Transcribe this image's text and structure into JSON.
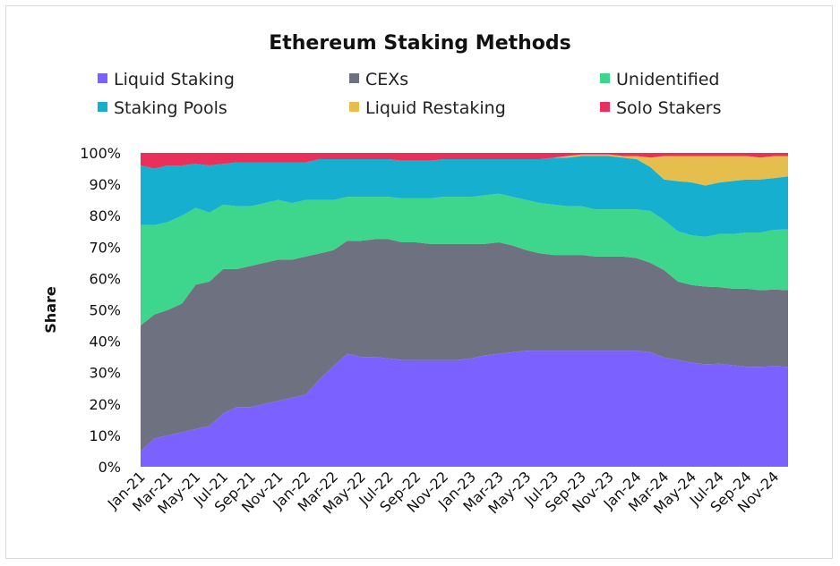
{
  "chart_data": {
    "type": "area",
    "stacked": true,
    "normalized": true,
    "title": "Ethereum Staking Methods",
    "xlabel": "",
    "ylabel": "Share",
    "ylim": [
      0,
      100
    ],
    "y_ticks": [
      "0%",
      "10%",
      "20%",
      "30%",
      "40%",
      "50%",
      "60%",
      "70%",
      "80%",
      "90%",
      "100%"
    ],
    "x_tick_labels": [
      "Jan-21",
      "Mar-21",
      "May-21",
      "Jul-21",
      "Sep-21",
      "Nov-21",
      "Jan-22",
      "Mar-22",
      "May-22",
      "Jul-22",
      "Sep-22",
      "Nov-22",
      "Jan-23",
      "Mar-23",
      "May-23",
      "Jul-23",
      "Sep-23",
      "Nov-23",
      "Jan-24",
      "Mar-24",
      "May-24",
      "Jul-24",
      "Sep-24",
      "Nov-24"
    ],
    "x": [
      "Jan-21",
      "Feb-21",
      "Mar-21",
      "Apr-21",
      "May-21",
      "Jun-21",
      "Jul-21",
      "Aug-21",
      "Sep-21",
      "Oct-21",
      "Nov-21",
      "Dec-21",
      "Jan-22",
      "Feb-22",
      "Mar-22",
      "Apr-22",
      "May-22",
      "Jun-22",
      "Jul-22",
      "Aug-22",
      "Sep-22",
      "Oct-22",
      "Nov-22",
      "Dec-22",
      "Jan-23",
      "Feb-23",
      "Mar-23",
      "Apr-23",
      "May-23",
      "Jun-23",
      "Jul-23",
      "Aug-23",
      "Sep-23",
      "Oct-23",
      "Nov-23",
      "Dec-23",
      "Jan-24",
      "Feb-24",
      "Mar-24",
      "Apr-24",
      "May-24",
      "Jun-24",
      "Jul-24",
      "Aug-24",
      "Sep-24",
      "Oct-24",
      "Nov-24",
      "Dec-24"
    ],
    "legend_position": "top",
    "series": [
      {
        "name": "Liquid Staking",
        "color": "#7B61FF",
        "values": [
          5,
          9,
          10,
          11,
          12,
          13,
          17,
          19,
          19,
          20,
          21,
          22,
          23,
          28,
          32,
          36,
          35,
          35,
          34.5,
          34,
          34,
          34,
          34,
          34,
          34.5,
          35.5,
          36,
          36.5,
          37,
          37,
          37,
          37,
          37,
          37,
          37,
          37,
          37,
          36.5,
          35,
          34,
          33.5,
          33,
          33,
          32.5,
          32,
          32,
          32,
          32
        ]
      },
      {
        "name": "CEXs",
        "color": "#6E7280",
        "values": [
          40,
          39.5,
          40,
          41,
          46,
          46,
          46,
          44,
          45,
          45,
          45,
          44,
          44,
          40,
          37,
          36,
          37,
          37.5,
          38,
          37.5,
          37.5,
          37,
          37,
          37,
          36.5,
          35.5,
          35.5,
          34,
          32,
          31,
          30.5,
          30.5,
          30.5,
          30,
          30,
          30,
          29.5,
          28.5,
          28,
          25,
          25,
          25,
          24.5,
          24.5,
          25,
          24.5,
          24.5,
          24.5
        ]
      },
      {
        "name": "Unidentified",
        "color": "#3DD68C",
        "values": [
          32,
          28.5,
          28,
          28,
          24.5,
          22,
          20.5,
          20,
          19,
          19,
          19,
          18,
          18,
          17,
          16,
          14,
          14,
          13.5,
          13.5,
          14,
          14,
          14.5,
          15,
          15,
          15,
          15.5,
          15.5,
          15.5,
          16,
          16,
          16,
          15.5,
          15.5,
          15,
          15,
          15,
          15.5,
          16.5,
          16,
          16,
          16,
          16,
          17,
          17.5,
          18,
          18.5,
          19,
          19.5
        ]
      },
      {
        "name": "Staking Pools",
        "color": "#17AFCF",
        "values": [
          19,
          18,
          18,
          16,
          14,
          15,
          13,
          14,
          14,
          13,
          12,
          13,
          12,
          13,
          13,
          12,
          12,
          12,
          12,
          12,
          12,
          12,
          12,
          12,
          12,
          11.5,
          11,
          12,
          13,
          14,
          15,
          15.5,
          16,
          17,
          17,
          16.5,
          16,
          14,
          13,
          16,
          17,
          16.5,
          16.5,
          17,
          17,
          17,
          16.5,
          17
        ]
      },
      {
        "name": "Liquid Restaking",
        "color": "#E6BE4E",
        "values": [
          0,
          0,
          0,
          0,
          0,
          0,
          0,
          0,
          0,
          0,
          0,
          0,
          0,
          0,
          0,
          0,
          0,
          0,
          0,
          0,
          0,
          0,
          0,
          0,
          0,
          0,
          0,
          0,
          0,
          0,
          0,
          0.5,
          0.5,
          0.5,
          0.5,
          0.5,
          1,
          3,
          7.5,
          8,
          8.5,
          9.5,
          8.5,
          8,
          7.5,
          7,
          7,
          6.5
        ]
      },
      {
        "name": "Solo Stakers",
        "color": "#E8305A",
        "values": [
          4,
          5,
          4,
          4,
          3.5,
          4,
          3.5,
          3,
          3,
          3,
          3,
          3,
          3,
          2,
          2,
          2,
          2,
          2,
          2,
          2.5,
          2.5,
          2.5,
          2,
          2,
          2,
          2,
          2,
          2,
          2,
          2,
          1.5,
          1,
          0.5,
          0.5,
          0.5,
          1,
          1,
          1.5,
          1,
          1,
          1,
          1,
          1,
          1,
          1,
          1.5,
          1,
          1
        ]
      }
    ]
  }
}
